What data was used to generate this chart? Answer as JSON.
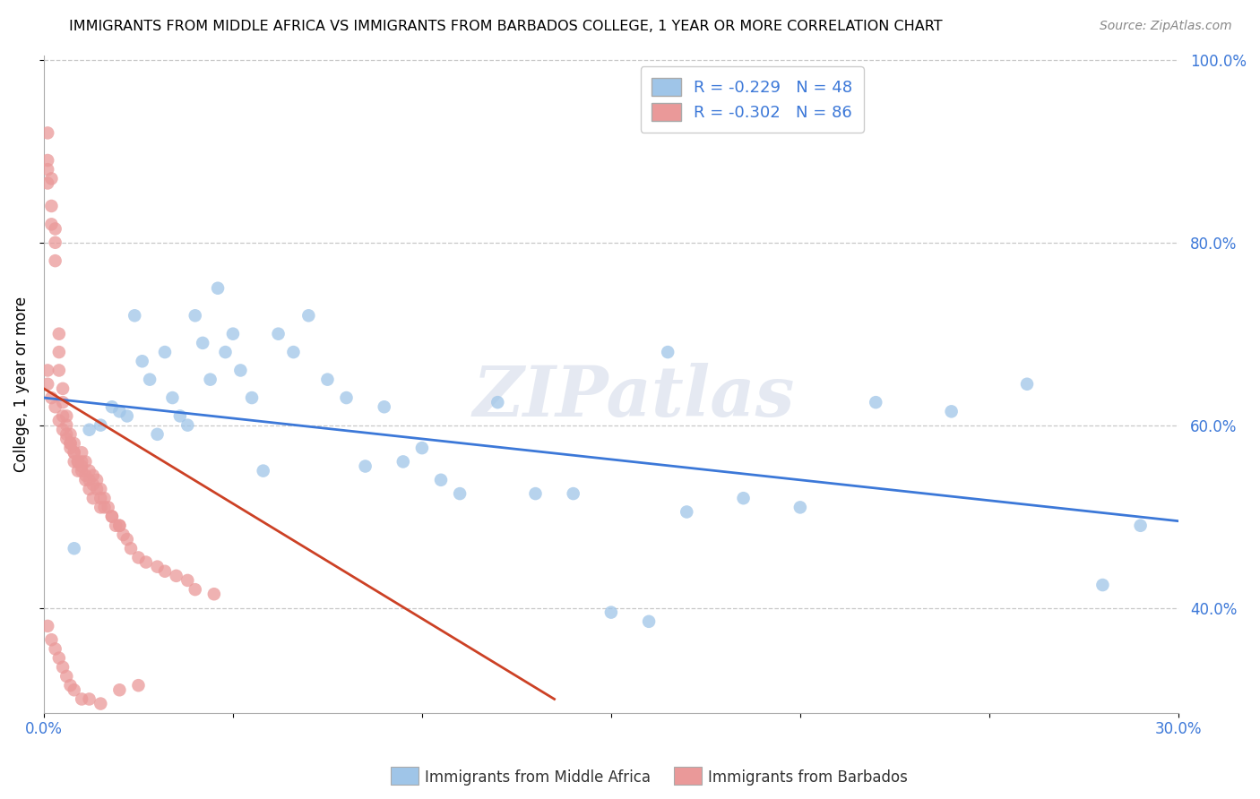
{
  "title": "IMMIGRANTS FROM MIDDLE AFRICA VS IMMIGRANTS FROM BARBADOS COLLEGE, 1 YEAR OR MORE CORRELATION CHART",
  "source": "Source: ZipAtlas.com",
  "ylabel": "College, 1 year or more",
  "xlim": [
    0.0,
    0.3
  ],
  "ylim": [
    0.285,
    1.005
  ],
  "blue_color": "#9fc5e8",
  "pink_color": "#ea9999",
  "blue_line_color": "#3c78d8",
  "pink_line_color": "#cc4125",
  "legend_R_blue": "-0.229",
  "legend_N_blue": "48",
  "legend_R_pink": "-0.302",
  "legend_N_pink": "86",
  "watermark": "ZIPatlas",
  "legend_label_blue": "Immigrants from Middle Africa",
  "legend_label_pink": "Immigrants from Barbados",
  "blue_scatter_x": [
    0.008,
    0.012,
    0.015,
    0.018,
    0.02,
    0.022,
    0.024,
    0.026,
    0.028,
    0.03,
    0.032,
    0.034,
    0.036,
    0.038,
    0.04,
    0.042,
    0.044,
    0.046,
    0.048,
    0.05,
    0.052,
    0.055,
    0.058,
    0.062,
    0.066,
    0.07,
    0.075,
    0.08,
    0.085,
    0.09,
    0.095,
    0.1,
    0.105,
    0.11,
    0.12,
    0.13,
    0.14,
    0.15,
    0.16,
    0.165,
    0.17,
    0.185,
    0.2,
    0.22,
    0.24,
    0.26,
    0.28,
    0.29
  ],
  "blue_scatter_y": [
    0.465,
    0.595,
    0.6,
    0.62,
    0.615,
    0.61,
    0.72,
    0.67,
    0.65,
    0.59,
    0.68,
    0.63,
    0.61,
    0.6,
    0.72,
    0.69,
    0.65,
    0.75,
    0.68,
    0.7,
    0.66,
    0.63,
    0.55,
    0.7,
    0.68,
    0.72,
    0.65,
    0.63,
    0.555,
    0.62,
    0.56,
    0.575,
    0.54,
    0.525,
    0.625,
    0.525,
    0.525,
    0.395,
    0.385,
    0.68,
    0.505,
    0.52,
    0.51,
    0.625,
    0.615,
    0.645,
    0.425,
    0.49
  ],
  "pink_scatter_x": [
    0.001,
    0.001,
    0.001,
    0.001,
    0.002,
    0.002,
    0.002,
    0.003,
    0.003,
    0.003,
    0.004,
    0.004,
    0.004,
    0.005,
    0.005,
    0.005,
    0.006,
    0.006,
    0.006,
    0.007,
    0.007,
    0.007,
    0.008,
    0.008,
    0.008,
    0.009,
    0.009,
    0.01,
    0.01,
    0.01,
    0.011,
    0.011,
    0.012,
    0.012,
    0.013,
    0.013,
    0.014,
    0.014,
    0.015,
    0.015,
    0.016,
    0.016,
    0.017,
    0.018,
    0.019,
    0.02,
    0.021,
    0.022,
    0.023,
    0.025,
    0.027,
    0.03,
    0.032,
    0.035,
    0.038,
    0.04,
    0.045,
    0.001,
    0.001,
    0.002,
    0.003,
    0.004,
    0.005,
    0.006,
    0.007,
    0.008,
    0.009,
    0.01,
    0.011,
    0.012,
    0.013,
    0.015,
    0.018,
    0.02,
    0.001,
    0.002,
    0.003,
    0.004,
    0.005,
    0.006,
    0.007,
    0.008,
    0.01,
    0.012,
    0.015,
    0.02,
    0.025
  ],
  "pink_scatter_y": [
    0.92,
    0.89,
    0.88,
    0.865,
    0.87,
    0.84,
    0.82,
    0.815,
    0.8,
    0.78,
    0.7,
    0.68,
    0.66,
    0.64,
    0.625,
    0.61,
    0.61,
    0.6,
    0.59,
    0.59,
    0.58,
    0.575,
    0.58,
    0.57,
    0.56,
    0.56,
    0.55,
    0.57,
    0.56,
    0.55,
    0.56,
    0.545,
    0.55,
    0.54,
    0.545,
    0.535,
    0.54,
    0.53,
    0.53,
    0.52,
    0.52,
    0.51,
    0.51,
    0.5,
    0.49,
    0.49,
    0.48,
    0.475,
    0.465,
    0.455,
    0.45,
    0.445,
    0.44,
    0.435,
    0.43,
    0.42,
    0.415,
    0.66,
    0.645,
    0.63,
    0.62,
    0.605,
    0.595,
    0.585,
    0.58,
    0.57,
    0.56,
    0.555,
    0.54,
    0.53,
    0.52,
    0.51,
    0.5,
    0.49,
    0.38,
    0.365,
    0.355,
    0.345,
    0.335,
    0.325,
    0.315,
    0.31,
    0.3,
    0.3,
    0.295,
    0.31,
    0.315
  ],
  "blue_trend_x": [
    0.0,
    0.3
  ],
  "blue_trend_y": [
    0.63,
    0.495
  ],
  "pink_trend_x": [
    0.0,
    0.135
  ],
  "pink_trend_y": [
    0.64,
    0.3
  ]
}
